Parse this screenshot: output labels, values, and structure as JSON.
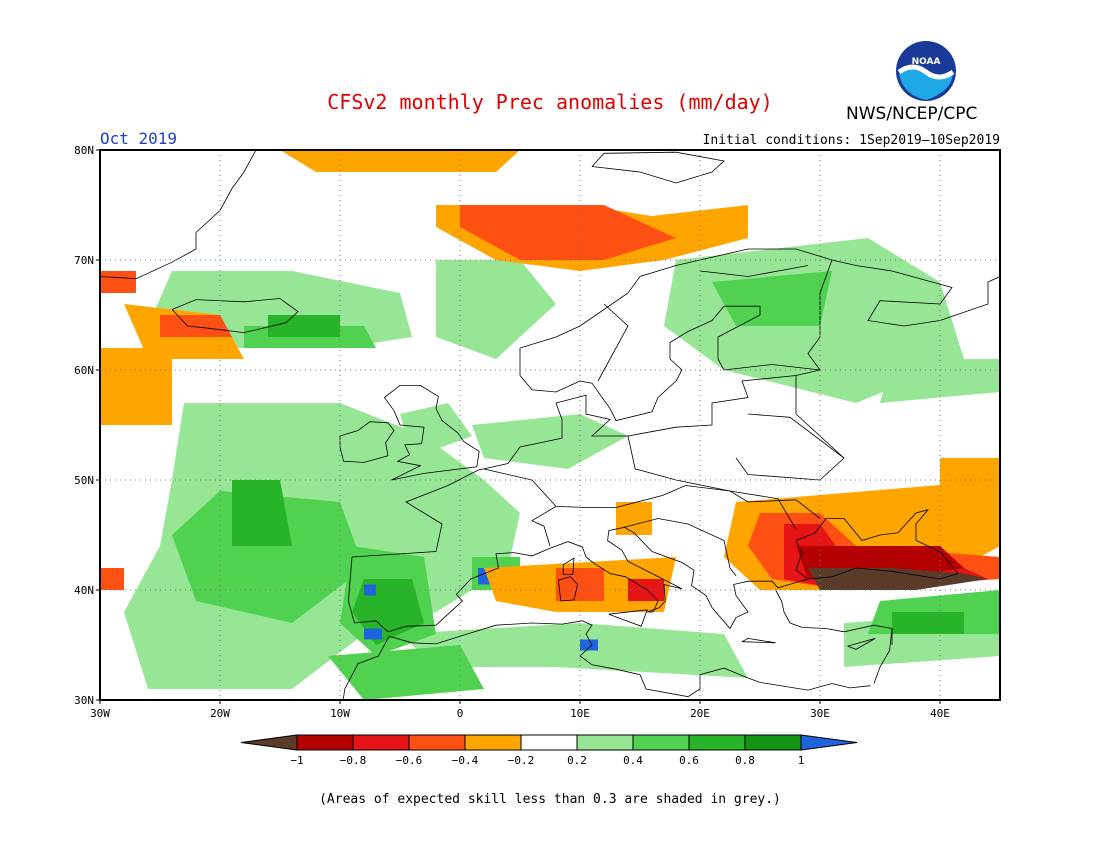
{
  "header": {
    "title": "CFSv2 monthly Prec anomalies (mm/day)",
    "month": "Oct 2019",
    "initial_conditions": "Initial conditions: 1Sep2019–10Sep2019",
    "org": "NWS/NCEP/CPC",
    "logo_text": "NOAA"
  },
  "map": {
    "lon_range": [
      -30,
      45
    ],
    "lat_range": [
      30,
      80
    ],
    "lat_ticks": [
      "80N",
      "70N",
      "60N",
      "50N",
      "40N",
      "30N"
    ],
    "lon_ticks": [
      "30W",
      "20W",
      "10W",
      "0",
      "10E",
      "20E",
      "30E",
      "40E"
    ],
    "grid": true
  },
  "legend": {
    "bins": [
      {
        "color": "#5a3a28"
      },
      {
        "color": "#b40000"
      },
      {
        "color": "#e61414"
      },
      {
        "color": "#ff5014"
      },
      {
        "color": "#ffa500"
      },
      {
        "color": "#ffffff"
      },
      {
        "color": "#96e696"
      },
      {
        "color": "#50d250"
      },
      {
        "color": "#28b428"
      },
      {
        "color": "#149614"
      },
      {
        "color": "#1e64dc"
      }
    ],
    "labels": [
      "−1",
      "−0.8",
      "−0.6",
      "−0.4",
      "−0.2",
      "0.2",
      "0.4",
      "0.6",
      "0.8",
      "1"
    ]
  },
  "note": "(Areas of expected skill less than 0.3 are shaded in grey.)",
  "colors": {
    "neg_extreme": "#5a3a28",
    "neg_strong": "#b40000",
    "neg_mid": "#e61414",
    "neg_moderate": "#ff5014",
    "neg_weak": "#ffa500",
    "pos_weak": "#96e696",
    "pos_moderate": "#50d250",
    "pos_mid": "#28b428",
    "pos_strong": "#149614",
    "pos_extreme": "#1e64dc"
  }
}
